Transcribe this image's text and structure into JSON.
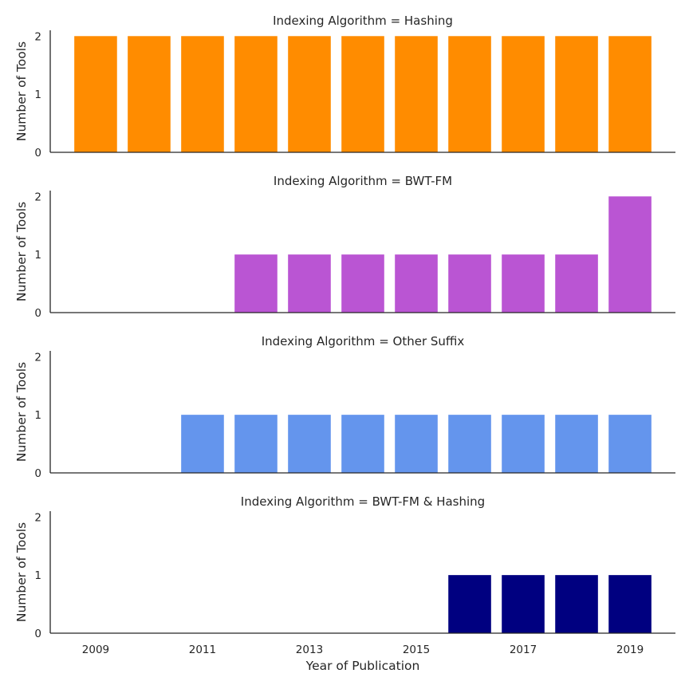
{
  "chart_data": {
    "type": "bar",
    "layout": "faceted-rows",
    "x": [
      2009,
      2010,
      2011,
      2012,
      2013,
      2014,
      2015,
      2016,
      2017,
      2018,
      2019
    ],
    "x_tick_labels": [
      "2009",
      "2011",
      "2013",
      "2015",
      "2017",
      "2019"
    ],
    "xlabel": "Year of Publication",
    "ylabel": "Number of Tools",
    "ylim": [
      0,
      2.1
    ],
    "y_ticks": [
      0,
      1,
      2
    ],
    "grid": false,
    "panels": [
      {
        "title": "Indexing Algorithm = Hashing",
        "color": "#FF8C00",
        "values": [
          2,
          2,
          2,
          2,
          2,
          2,
          2,
          2,
          2,
          2,
          2
        ]
      },
      {
        "title": "Indexing Algorithm = BWT-FM",
        "color": "#BA55D3",
        "values": [
          0,
          0,
          0,
          1,
          1,
          1,
          1,
          1,
          1,
          1,
          2
        ]
      },
      {
        "title": "Indexing Algorithm = Other Suffix",
        "color": "#6495ED",
        "values": [
          0,
          0,
          1,
          1,
          1,
          1,
          1,
          1,
          1,
          1,
          1
        ]
      },
      {
        "title": "Indexing Algorithm = BWT-FM & Hashing",
        "color": "#000080",
        "values": [
          0,
          0,
          0,
          0,
          0,
          0,
          0,
          1,
          1,
          1,
          1
        ]
      }
    ]
  }
}
